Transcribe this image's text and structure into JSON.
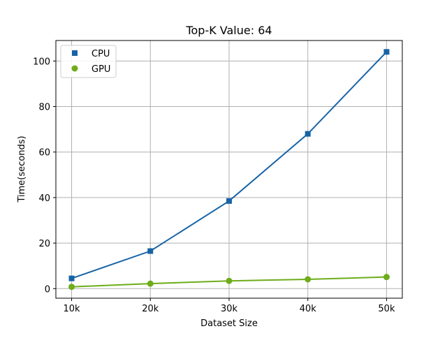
{
  "chart_data": {
    "type": "line",
    "title": "Top-K Value: 64",
    "xlabel": "Dataset Size",
    "ylabel": "Time(seconds)",
    "categories": [
      "10k",
      "20k",
      "30k",
      "40k",
      "50k"
    ],
    "x": [
      10,
      20,
      30,
      40,
      50
    ],
    "xlim": [
      8,
      52
    ],
    "ylim": [
      -4.2,
      109
    ],
    "yticks": [
      0,
      20,
      40,
      60,
      80,
      100
    ],
    "grid": true,
    "legend_position": "top-left",
    "series": [
      {
        "name": "CPU",
        "values": [
          4.5,
          16.5,
          38.5,
          68,
          104
        ],
        "color": "#1763a6",
        "marker": "square"
      },
      {
        "name": "GPU",
        "values": [
          0.8,
          2.2,
          3.4,
          4.1,
          5.1
        ],
        "color": "#6eac1a",
        "marker": "circle"
      }
    ]
  }
}
